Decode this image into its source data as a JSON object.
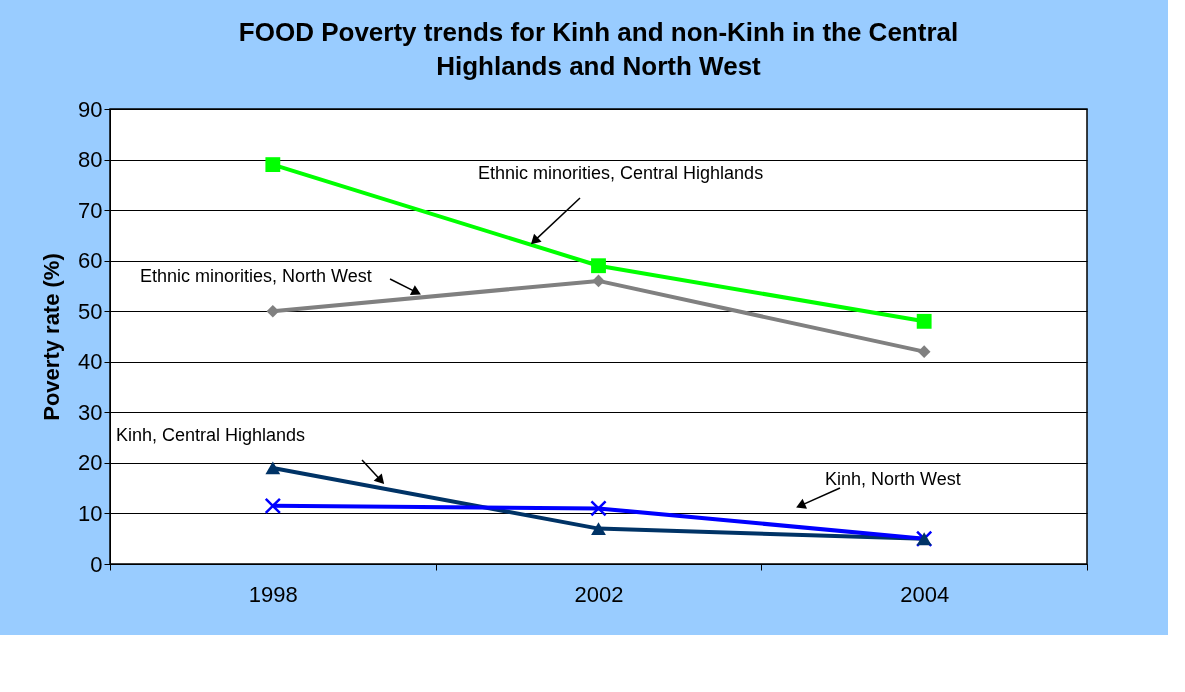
{
  "chart_data": {
    "type": "line",
    "title": "FOOD Poverty trends for Kinh and non-Kinh in the Central Highlands and North West",
    "ylabel": "Poverty rate (%)",
    "categories": [
      "1998",
      "2002",
      "2004"
    ],
    "ylim": [
      0,
      90
    ],
    "yticks": [
      0,
      10,
      20,
      30,
      40,
      50,
      60,
      70,
      80,
      90
    ],
    "grid": "y",
    "series": [
      {
        "name": "Ethnic minorities, Central Highlands",
        "color": "#00ff00",
        "marker": "square",
        "values": [
          79,
          59,
          48
        ]
      },
      {
        "name": "Ethnic minorities, North West",
        "color": "#808080",
        "marker": "diamond",
        "values": [
          50,
          56,
          42
        ]
      },
      {
        "name": "Kinh, Central Highlands",
        "color": "#003366",
        "marker": "triangle",
        "values": [
          19,
          7,
          5
        ]
      },
      {
        "name": "Kinh, North West",
        "color": "#0000ff",
        "marker": "cross",
        "values": [
          11.5,
          11,
          5
        ]
      }
    ]
  }
}
